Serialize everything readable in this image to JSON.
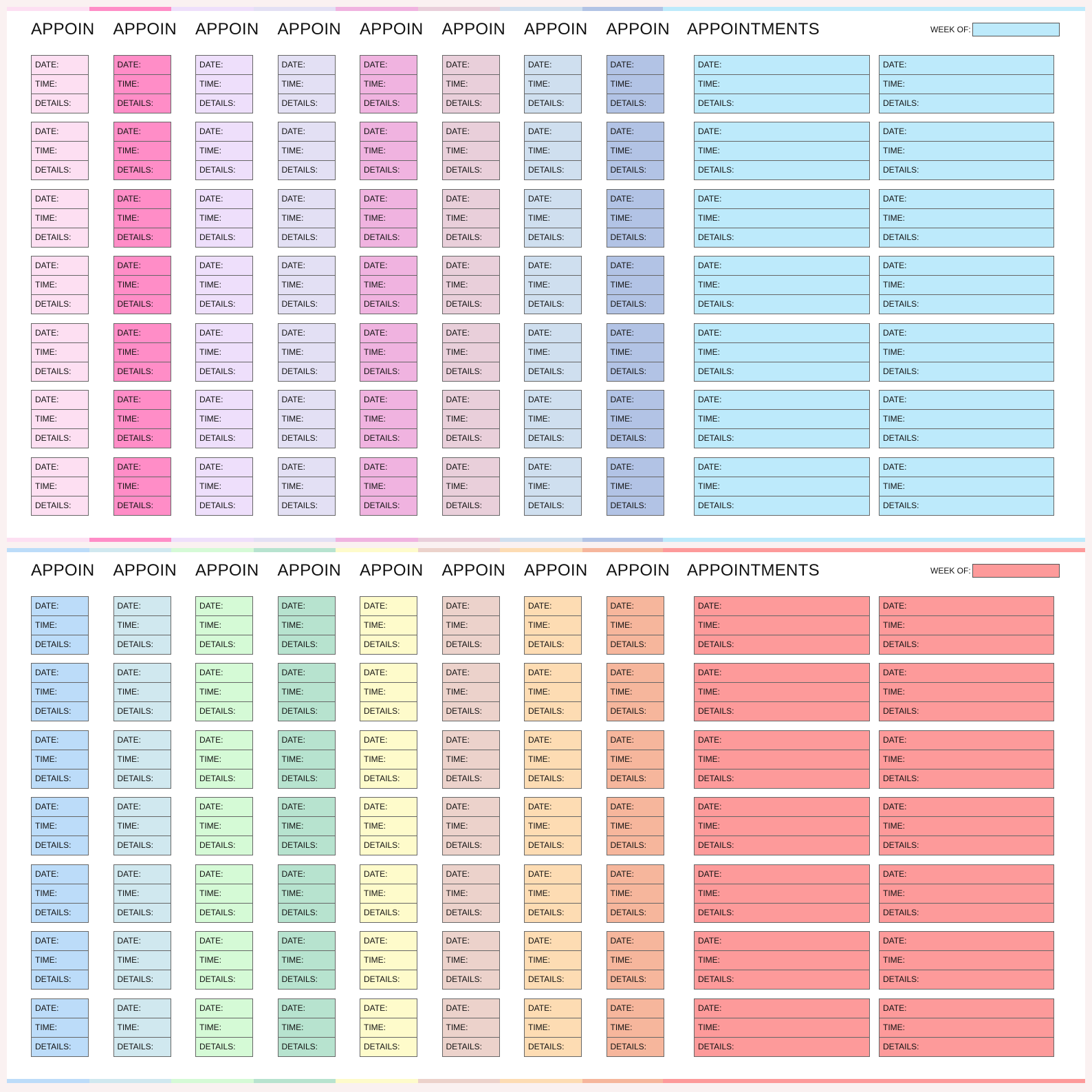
{
  "labels": {
    "date": "DATE:",
    "time": "TIME:",
    "details": "DETAILS:"
  },
  "strip_title": "APPOIN",
  "main_title": "APPOINTMENTS",
  "week_of_label": "WEEK OF:",
  "pages": [
    {
      "strip_colors": [
        "#fddff2",
        "#ff8dc7",
        "#eedffb",
        "#e3e0f4",
        "#f0b3e0",
        "#e9cfda",
        "#cfdfef",
        "#b2c3e5"
      ],
      "main_color": "#bdeafb"
    },
    {
      "strip_colors": [
        "#bcdcf9",
        "#d0e8ef",
        "#d5fad6",
        "#b7e3cf",
        "#fefbcb",
        "#ecd2cb",
        "#fddcb3",
        "#f6b69c"
      ],
      "main_color": "#fd9a9a"
    }
  ]
}
